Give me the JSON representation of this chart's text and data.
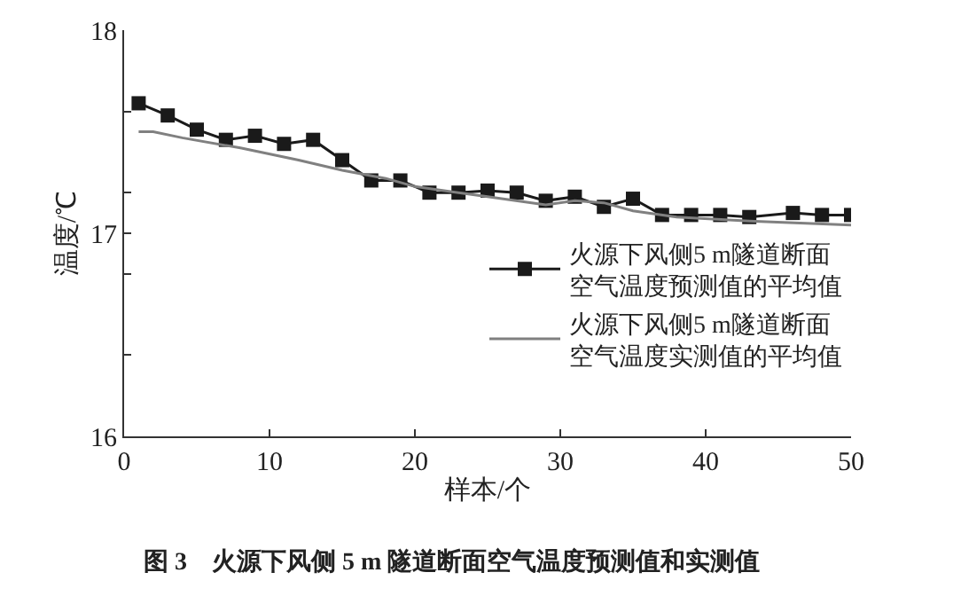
{
  "chart_data": {
    "type": "line",
    "title": "图 3　火源下风侧 5 m 隧道断面空气温度预测值和实测值",
    "xlabel": "样本/个",
    "ylabel": "温度/℃",
    "xlim": [
      0,
      50
    ],
    "xticks": [
      0,
      10,
      20,
      30,
      40,
      50
    ],
    "ylim": [
      16,
      18
    ],
    "yticks": [
      16,
      {
        "value": 16.4,
        "label": null
      },
      {
        "value": 16.8,
        "label": null
      },
      17,
      {
        "value": 17.2,
        "label": null
      },
      {
        "value": 17.6,
        "label": null
      },
      18
    ],
    "legend": "right",
    "series": [
      {
        "name": "火源下风侧5 m隧道断面空气温度预测值的平均值",
        "color": "#1a1a1a",
        "marker": "square",
        "x": [
          1,
          3,
          5,
          7,
          9,
          11,
          13,
          15,
          17,
          19,
          21,
          23,
          25,
          27,
          29,
          31,
          33,
          35,
          37,
          39,
          41,
          43,
          46,
          48,
          50
        ],
        "values": [
          17.64,
          17.58,
          17.51,
          17.46,
          17.48,
          17.44,
          17.46,
          17.36,
          17.26,
          17.26,
          17.2,
          17.2,
          17.21,
          17.2,
          17.16,
          17.18,
          17.13,
          17.17,
          17.09,
          17.09,
          17.09,
          17.08,
          17.1,
          17.09,
          17.09
        ]
      },
      {
        "name": "火源下风侧5 m隧道断面空气温度实测值的平均值",
        "color": "#808080",
        "marker": "none",
        "x": [
          1,
          2,
          4,
          8,
          12,
          15,
          18,
          20,
          25,
          29,
          31,
          33,
          35,
          38,
          43,
          50
        ],
        "values": [
          17.5,
          17.5,
          17.47,
          17.42,
          17.36,
          17.31,
          17.27,
          17.23,
          17.18,
          17.14,
          17.16,
          17.15,
          17.11,
          17.08,
          17.06,
          17.04
        ]
      }
    ]
  }
}
